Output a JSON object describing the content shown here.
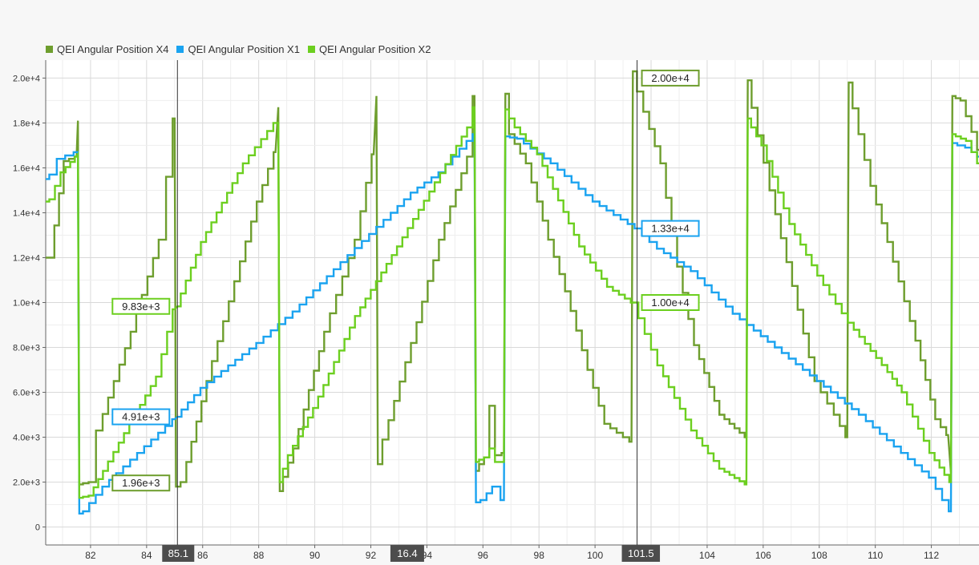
{
  "colors": {
    "x4": "#6e9e2e",
    "x1": "#1aa3f0",
    "x2": "#6ccf1f",
    "grid": "#d9d9d9",
    "cursor": "#333333",
    "cursor_label_bg": "#4d4d4d"
  },
  "legend": [
    {
      "name": "QEI Angular Position X4",
      "color_key": "x4"
    },
    {
      "name": "QEI Angular Position X1",
      "color_key": "x1"
    },
    {
      "name": "QEI Angular Position X2",
      "color_key": "x2"
    }
  ],
  "chart_data": {
    "type": "line",
    "xlim": [
      80.4,
      113.7
    ],
    "ylim": [
      -800,
      20800
    ],
    "x_ticks": [
      82,
      84,
      86,
      88,
      90,
      92,
      94,
      96,
      98,
      100,
      102,
      104,
      106,
      108,
      110,
      112
    ],
    "y_ticks": [
      {
        "value": 0,
        "label": "0"
      },
      {
        "value": 2000,
        "label": "2.0e+3"
      },
      {
        "value": 4000,
        "label": "4.0e+3"
      },
      {
        "value": 6000,
        "label": "6.0e+3"
      },
      {
        "value": 8000,
        "label": "8.0e+3"
      },
      {
        "value": 10000,
        "label": "1.0e+4"
      },
      {
        "value": 12000,
        "label": "1.2e+4"
      },
      {
        "value": 14000,
        "label": "1.4e+4"
      },
      {
        "value": 16000,
        "label": "1.6e+4"
      },
      {
        "value": 18000,
        "label": "1.8e+4"
      },
      {
        "value": 20000,
        "label": "2.0e+4"
      }
    ],
    "grid": true,
    "legend_position": "top-left",
    "series": [
      {
        "name": "QEI Angular Position X4",
        "color_key": "x4",
        "step": 0.2,
        "points": [
          [
            80.4,
            12000
          ],
          [
            80.6,
            12000
          ],
          [
            81.1,
            16300
          ],
          [
            81.5,
            16500
          ],
          [
            81.55,
            18100
          ],
          [
            81.6,
            1900
          ],
          [
            82.0,
            2000
          ],
          [
            82.3,
            4300
          ],
          [
            83.5,
            8700
          ],
          [
            84.5,
            12800
          ],
          [
            84.8,
            15600
          ],
          [
            85.0,
            18200
          ],
          [
            85.05,
            1800
          ],
          [
            85.3,
            2000
          ],
          [
            86.2,
            6500
          ],
          [
            88.0,
            14500
          ],
          [
            88.6,
            16700
          ],
          [
            88.7,
            18700
          ],
          [
            88.75,
            1600
          ],
          [
            89.3,
            3500
          ],
          [
            90.4,
            8700
          ],
          [
            91.5,
            12800
          ],
          [
            92.1,
            16600
          ],
          [
            92.2,
            19200
          ],
          [
            92.25,
            2800
          ],
          [
            92.5,
            3900
          ],
          [
            93.5,
            8200
          ],
          [
            94.5,
            12800
          ],
          [
            95.5,
            16500
          ],
          [
            95.7,
            19200
          ],
          [
            95.75,
            2500
          ],
          [
            96.1,
            3100
          ],
          [
            96.3,
            5400
          ],
          [
            96.5,
            3200
          ],
          [
            96.75,
            3300
          ],
          [
            96.8,
            19300
          ],
          [
            97.0,
            17500
          ],
          [
            97.6,
            16200
          ],
          [
            98.4,
            12800
          ],
          [
            99.0,
            10500
          ],
          [
            99.8,
            7000
          ],
          [
            100.4,
            4600
          ],
          [
            101.3,
            3800
          ],
          [
            101.35,
            20300
          ],
          [
            101.8,
            18500
          ],
          [
            102.4,
            16200
          ],
          [
            103.0,
            11600
          ],
          [
            103.6,
            8100
          ],
          [
            104.5,
            5000
          ],
          [
            105.4,
            4000
          ],
          [
            105.45,
            19900
          ],
          [
            106.3,
            15000
          ],
          [
            106.9,
            11800
          ],
          [
            107.9,
            6500
          ],
          [
            108.6,
            5000
          ],
          [
            109.0,
            4000
          ],
          [
            109.05,
            19800
          ],
          [
            109.9,
            15200
          ],
          [
            110.5,
            12700
          ],
          [
            111.5,
            8300
          ],
          [
            112.2,
            4800
          ],
          [
            112.6,
            4100
          ],
          [
            112.7,
            2400
          ],
          [
            112.75,
            19200
          ],
          [
            113.1,
            19000
          ],
          [
            113.5,
            17600
          ],
          [
            113.7,
            16800
          ]
        ]
      },
      {
        "name": "QEI Angular Position X1",
        "color_key": "x1",
        "step": 0.25,
        "points": [
          [
            80.4,
            15500
          ],
          [
            80.6,
            15700
          ],
          [
            80.9,
            16400
          ],
          [
            81.5,
            16700
          ],
          [
            81.55,
            16700
          ],
          [
            81.6,
            600
          ],
          [
            81.8,
            700
          ],
          [
            82.5,
            1800
          ],
          [
            85.0,
            4800
          ],
          [
            85.1,
            4910
          ],
          [
            86.0,
            6200
          ],
          [
            88.0,
            8200
          ],
          [
            89.3,
            9600
          ],
          [
            91.0,
            11800
          ],
          [
            92.8,
            14000
          ],
          [
            93.5,
            14900
          ],
          [
            94.5,
            15800
          ],
          [
            95.5,
            17200
          ],
          [
            95.7,
            17500
          ],
          [
            95.75,
            1100
          ],
          [
            96.0,
            1200
          ],
          [
            96.4,
            1800
          ],
          [
            96.75,
            1200
          ],
          [
            96.8,
            17400
          ],
          [
            97.3,
            17300
          ],
          [
            98.5,
            16200
          ],
          [
            100.0,
            14500
          ],
          [
            101.5,
            13300
          ],
          [
            102.3,
            12400
          ],
          [
            103.5,
            11400
          ],
          [
            105.0,
            9500
          ],
          [
            106.5,
            8000
          ],
          [
            108.0,
            6500
          ],
          [
            109.5,
            5000
          ],
          [
            111.0,
            3300
          ],
          [
            112.0,
            2200
          ],
          [
            112.7,
            700
          ],
          [
            112.75,
            17100
          ],
          [
            113.3,
            16900
          ],
          [
            113.7,
            16500
          ]
        ]
      },
      {
        "name": "QEI Angular Position X2",
        "color_key": "x2",
        "step": 0.2,
        "points": [
          [
            80.4,
            14500
          ],
          [
            80.6,
            14600
          ],
          [
            81.0,
            15800
          ],
          [
            81.5,
            16500
          ],
          [
            81.55,
            16600
          ],
          [
            81.6,
            1300
          ],
          [
            82.0,
            1400
          ],
          [
            82.5,
            2500
          ],
          [
            84.4,
            6700
          ],
          [
            85.0,
            9700
          ],
          [
            85.1,
            9830
          ],
          [
            86.0,
            12700
          ],
          [
            87.5,
            16200
          ],
          [
            88.6,
            18000
          ],
          [
            88.7,
            18000
          ],
          [
            88.75,
            2000
          ],
          [
            89.1,
            3200
          ],
          [
            90.0,
            5300
          ],
          [
            91.5,
            9400
          ],
          [
            93.0,
            12500
          ],
          [
            95.5,
            17800
          ],
          [
            95.7,
            18700
          ],
          [
            95.75,
            2900
          ],
          [
            96.1,
            3100
          ],
          [
            96.3,
            3500
          ],
          [
            96.5,
            2900
          ],
          [
            96.75,
            2900
          ],
          [
            96.8,
            18600
          ],
          [
            97.2,
            17800
          ],
          [
            98.0,
            16600
          ],
          [
            99.5,
            12500
          ],
          [
            100.5,
            10700
          ],
          [
            101.35,
            10000
          ],
          [
            101.4,
            10000
          ],
          [
            102.3,
            7200
          ],
          [
            103.5,
            4300
          ],
          [
            104.5,
            2600
          ],
          [
            105.4,
            1900
          ],
          [
            105.45,
            18200
          ],
          [
            106.0,
            17000
          ],
          [
            107.0,
            13500
          ],
          [
            108.0,
            11200
          ],
          [
            109.1,
            9100
          ],
          [
            110.5,
            6900
          ],
          [
            111.0,
            6000
          ],
          [
            112.0,
            3300
          ],
          [
            112.7,
            2000
          ],
          [
            112.75,
            17500
          ],
          [
            113.3,
            17200
          ],
          [
            113.7,
            16200
          ]
        ]
      }
    ],
    "cursors": [
      {
        "x": 85.1,
        "label": "85.1"
      },
      {
        "x": 101.5,
        "label": "101.5"
      }
    ],
    "cursor_delta": {
      "x": 93.3,
      "label": "16.4"
    },
    "annotations": [
      {
        "x": 85.1,
        "y": 9830,
        "text": "9.83e+3",
        "color_key": "x2",
        "side": "left"
      },
      {
        "x": 85.1,
        "y": 4910,
        "text": "4.91e+3",
        "color_key": "x1",
        "side": "left"
      },
      {
        "x": 85.1,
        "y": 1960,
        "text": "1.96e+3",
        "color_key": "x4",
        "side": "left"
      },
      {
        "x": 101.5,
        "y": 20000,
        "text": "2.00e+4",
        "color_key": "x4",
        "side": "right"
      },
      {
        "x": 101.5,
        "y": 13300,
        "text": "1.33e+4",
        "color_key": "x1",
        "side": "right"
      },
      {
        "x": 101.5,
        "y": 10000,
        "text": "1.00e+4",
        "color_key": "x2",
        "side": "right"
      }
    ]
  }
}
